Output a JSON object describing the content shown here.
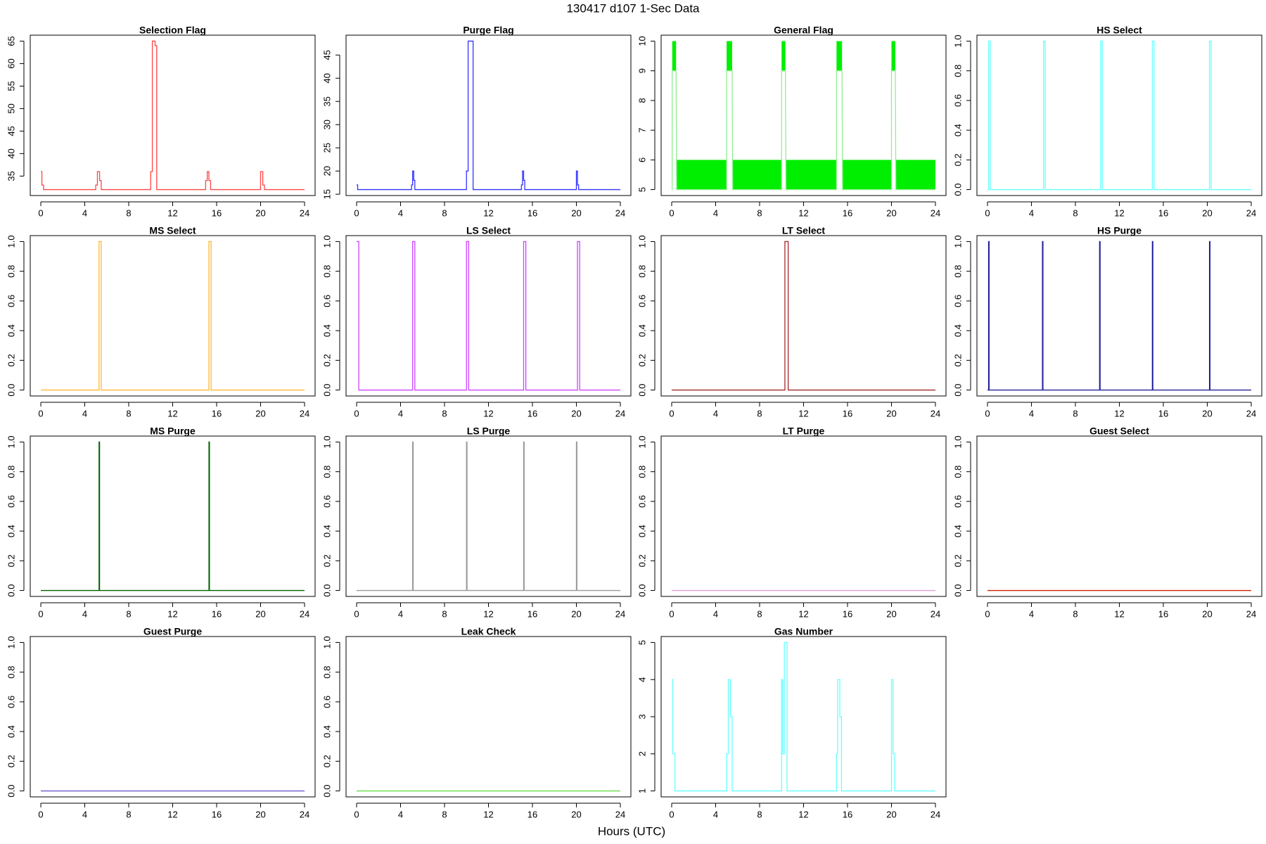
{
  "title": "130417   d107   1-Sec Data",
  "x_label": "Hours (UTC)",
  "chart_data": [
    {
      "type": "line",
      "title": "Selection Flag",
      "color": "#ff4444",
      "xlim": [
        -0.96,
        24.96
      ],
      "xticks": [
        0,
        4,
        8,
        12,
        16,
        20,
        24
      ],
      "ylim": [
        30.68,
        66.32
      ],
      "yticks": [
        35,
        40,
        45,
        50,
        55,
        60,
        65
      ],
      "x": [
        0,
        0.1,
        0.1,
        0.25,
        0.25,
        5.0,
        5.0,
        5.15,
        5.15,
        5.35,
        5.35,
        5.5,
        5.5,
        10.0,
        10.0,
        10.15,
        10.15,
        10.4,
        10.4,
        10.55,
        10.55,
        15.0,
        15.0,
        15.15,
        15.15,
        15.3,
        15.3,
        15.45,
        15.45,
        20.0,
        20.0,
        20.2,
        20.2,
        20.35,
        20.35,
        24
      ],
      "values": [
        36,
        36,
        33,
        33,
        32,
        32,
        33,
        33,
        36,
        36,
        34,
        34,
        32,
        32,
        36,
        36,
        65,
        65,
        64,
        64,
        32,
        32,
        34,
        34,
        36,
        36,
        34,
        34,
        32,
        32,
        36,
        36,
        33,
        33,
        32,
        32
      ]
    },
    {
      "type": "line",
      "title": "Purge Flag",
      "color": "#3333ff",
      "xlim": [
        -0.96,
        24.96
      ],
      "xticks": [
        0,
        4,
        8,
        12,
        16,
        20,
        24
      ],
      "ylim": [
        14.72,
        49.28
      ],
      "yticks": [
        15,
        20,
        25,
        30,
        35,
        40,
        45
      ],
      "x": [
        0,
        0.1,
        0.1,
        5.0,
        5.0,
        5.1,
        5.1,
        5.2,
        5.2,
        5.3,
        5.3,
        10.0,
        10.0,
        10.15,
        10.15,
        10.6,
        10.6,
        15.0,
        15.0,
        15.1,
        15.1,
        15.2,
        15.2,
        15.3,
        15.3,
        20.0,
        20.0,
        20.1,
        20.1,
        20.2,
        20.2,
        24
      ],
      "values": [
        17,
        17,
        16,
        16,
        17,
        17,
        20,
        20,
        18,
        18,
        16,
        16,
        20,
        20,
        48,
        48,
        16,
        16,
        17,
        17,
        20,
        20,
        18,
        18,
        16,
        16,
        20,
        20,
        17,
        17,
        16,
        16
      ]
    },
    {
      "type": "line",
      "title": "General Flag",
      "color": "#90ee90",
      "fill_color": "#00ee00",
      "xlim": [
        -0.96,
        24.96
      ],
      "xticks": [
        0,
        4,
        8,
        12,
        16,
        20,
        24
      ],
      "ylim": [
        4.8,
        10.2
      ],
      "yticks": [
        5,
        6,
        7,
        8,
        9,
        10
      ],
      "x": [
        0,
        0.05,
        0.05,
        0.4,
        0.45,
        5.0,
        5.0,
        5.5,
        5.55,
        10.0,
        10.0,
        10.35,
        10.4,
        15.0,
        15.0,
        15.5,
        15.55,
        20.0,
        20.0,
        20.35,
        20.4,
        24
      ],
      "values": [
        5,
        5,
        9,
        9,
        5,
        5,
        9,
        9,
        5,
        5,
        9,
        9,
        5,
        5,
        9,
        9,
        5,
        5,
        9,
        9,
        5,
        5
      ],
      "fill_ranges": [
        {
          "x": [
            0.05,
            0.4
          ],
          "y": [
            9,
            10
          ]
        },
        {
          "x": [
            0.45,
            5.0
          ],
          "y": [
            5,
            6
          ]
        },
        {
          "x": [
            5.0,
            5.5
          ],
          "y": [
            9,
            10
          ]
        },
        {
          "x": [
            5.55,
            10.0
          ],
          "y": [
            5,
            6
          ]
        },
        {
          "x": [
            10.0,
            10.35
          ],
          "y": [
            9,
            10
          ]
        },
        {
          "x": [
            10.4,
            15.0
          ],
          "y": [
            5,
            6
          ]
        },
        {
          "x": [
            15.0,
            15.5
          ],
          "y": [
            9,
            10
          ]
        },
        {
          "x": [
            15.55,
            20.0
          ],
          "y": [
            5,
            6
          ]
        },
        {
          "x": [
            20.0,
            20.35
          ],
          "y": [
            9,
            10
          ]
        },
        {
          "x": [
            20.4,
            24
          ],
          "y": [
            5,
            6
          ]
        }
      ]
    },
    {
      "type": "line",
      "title": "HS Select",
      "color": "#66ffff",
      "xlim": [
        -0.96,
        24.96
      ],
      "xticks": [
        0,
        4,
        8,
        12,
        16,
        20,
        24
      ],
      "ylim": [
        -0.04,
        1.04
      ],
      "yticks": [
        {
          "value": 0,
          "label": "0.0"
        },
        0.2,
        0.4,
        0.6,
        0.8,
        {
          "value": 1,
          "label": "1.0"
        }
      ],
      "x": [
        0,
        0.1,
        0.1,
        0.25,
        0.25,
        5.1,
        5.1,
        5.25,
        5.25,
        10.3,
        10.3,
        10.45,
        10.45,
        15.0,
        15.0,
        15.15,
        15.15,
        20.2,
        20.2,
        20.35,
        20.35,
        24
      ],
      "values": [
        0,
        0,
        1,
        1,
        0,
        0,
        1,
        1,
        0,
        0,
        1,
        1,
        0,
        0,
        1,
        1,
        0,
        0,
        1,
        1,
        0,
        0
      ]
    },
    {
      "type": "line",
      "title": "MS Select",
      "color": "#ffb833",
      "xlim": [
        -0.96,
        24.96
      ],
      "xticks": [
        0,
        4,
        8,
        12,
        16,
        20,
        24
      ],
      "ylim": [
        -0.04,
        1.04
      ],
      "yticks": [
        {
          "value": 0,
          "label": "0.0"
        },
        0.2,
        0.4,
        0.6,
        0.8,
        {
          "value": 1,
          "label": "1.0"
        }
      ],
      "x": [
        0,
        5.3,
        5.3,
        5.5,
        5.5,
        15.3,
        15.3,
        15.5,
        15.5,
        24
      ],
      "values": [
        0,
        0,
        1,
        1,
        0,
        0,
        1,
        1,
        0,
        0
      ]
    },
    {
      "type": "line",
      "title": "LS Select",
      "color": "#cc44ff",
      "xlim": [
        -0.96,
        24.96
      ],
      "xticks": [
        0,
        4,
        8,
        12,
        16,
        20,
        24
      ],
      "ylim": [
        -0.04,
        1.04
      ],
      "yticks": [
        {
          "value": 0,
          "label": "0.0"
        },
        0.2,
        0.4,
        0.6,
        0.8,
        {
          "value": 1,
          "label": "1.0"
        }
      ],
      "x": [
        0,
        0.2,
        0.2,
        5.1,
        5.1,
        5.3,
        5.3,
        10.0,
        10.0,
        10.2,
        10.2,
        15.2,
        15.2,
        15.4,
        15.4,
        20.1,
        20.1,
        20.3,
        20.3,
        24
      ],
      "values": [
        1,
        1,
        0,
        0,
        1,
        1,
        0,
        0,
        1,
        1,
        0,
        0,
        1,
        1,
        0,
        0,
        1,
        1,
        0,
        0
      ]
    },
    {
      "type": "line",
      "title": "LT Select",
      "color": "#a52a2a",
      "xlim": [
        -0.96,
        24.96
      ],
      "xticks": [
        0,
        4,
        8,
        12,
        16,
        20,
        24
      ],
      "ylim": [
        -0.04,
        1.04
      ],
      "yticks": [
        {
          "value": 0,
          "label": "0.0"
        },
        0.2,
        0.4,
        0.6,
        0.8,
        {
          "value": 1,
          "label": "1.0"
        }
      ],
      "x": [
        0,
        10.3,
        10.3,
        10.6,
        10.6,
        24
      ],
      "values": [
        0,
        0,
        1,
        1,
        0,
        0
      ]
    },
    {
      "type": "line",
      "title": "HS Purge",
      "color": "#22229a",
      "xlim": [
        -0.96,
        24.96
      ],
      "xticks": [
        0,
        4,
        8,
        12,
        16,
        20,
        24
      ],
      "ylim": [
        -0.04,
        1.04
      ],
      "yticks": [
        {
          "value": 0,
          "label": "0.0"
        },
        0.2,
        0.4,
        0.6,
        0.8,
        {
          "value": 1,
          "label": "1.0"
        }
      ],
      "x": [
        0,
        0.1,
        0.1,
        0.15,
        0.15,
        5.0,
        5.0,
        5.05,
        5.05,
        10.2,
        10.2,
        10.25,
        10.25,
        15.0,
        15.0,
        15.05,
        15.05,
        20.2,
        20.2,
        20.25,
        20.25,
        24
      ],
      "values": [
        0,
        0,
        1,
        1,
        0,
        0,
        1,
        1,
        0,
        0,
        1,
        1,
        0,
        0,
        1,
        1,
        0,
        0,
        1,
        1,
        0,
        0
      ]
    },
    {
      "type": "line",
      "title": "MS Purge",
      "color": "#006400",
      "xlim": [
        -0.96,
        24.96
      ],
      "xticks": [
        0,
        4,
        8,
        12,
        16,
        20,
        24
      ],
      "ylim": [
        -0.04,
        1.04
      ],
      "yticks": [
        {
          "value": 0,
          "label": "0.0"
        },
        0.2,
        0.4,
        0.6,
        0.8,
        {
          "value": 1,
          "label": "1.0"
        }
      ],
      "x": [
        0,
        5.3,
        5.3,
        5.35,
        5.35,
        15.3,
        15.3,
        15.35,
        15.35,
        24
      ],
      "values": [
        0,
        0,
        1,
        1,
        0,
        0,
        1,
        1,
        0,
        0
      ]
    },
    {
      "type": "line",
      "title": "LS Purge",
      "color": "#999999",
      "xlim": [
        -0.96,
        24.96
      ],
      "xticks": [
        0,
        4,
        8,
        12,
        16,
        20,
        24
      ],
      "ylim": [
        -0.04,
        1.04
      ],
      "yticks": [
        {
          "value": 0,
          "label": "0.0"
        },
        0.2,
        0.4,
        0.6,
        0.8,
        {
          "value": 1,
          "label": "1.0"
        }
      ],
      "x": [
        0,
        5.1,
        5.1,
        5.15,
        5.15,
        10.0,
        10.0,
        10.05,
        10.05,
        15.2,
        15.2,
        15.25,
        15.25,
        20.0,
        20.0,
        20.05,
        20.05,
        24
      ],
      "values": [
        0,
        0,
        1,
        1,
        0,
        0,
        1,
        1,
        0,
        0,
        1,
        1,
        0,
        0,
        1,
        1,
        0,
        0
      ]
    },
    {
      "type": "line",
      "title": "LT Purge",
      "color": "#dda0dd",
      "xlim": [
        -0.96,
        24.96
      ],
      "xticks": [
        0,
        4,
        8,
        12,
        16,
        20,
        24
      ],
      "ylim": [
        -0.04,
        1.04
      ],
      "yticks": [
        {
          "value": 0,
          "label": "0.0"
        },
        0.2,
        0.4,
        0.6,
        0.8,
        {
          "value": 1,
          "label": "1.0"
        }
      ],
      "x": [
        0,
        24
      ],
      "values": [
        0,
        0
      ]
    },
    {
      "type": "line",
      "title": "Guest Select",
      "color": "#cc2200",
      "xlim": [
        -0.96,
        24.96
      ],
      "xticks": [
        0,
        4,
        8,
        12,
        16,
        20,
        24
      ],
      "ylim": [
        -0.04,
        1.04
      ],
      "yticks": [
        {
          "value": 0,
          "label": "0.0"
        },
        0.2,
        0.4,
        0.6,
        0.8,
        {
          "value": 1,
          "label": "1.0"
        }
      ],
      "x": [
        0,
        24
      ],
      "values": [
        0,
        0
      ]
    },
    {
      "type": "line",
      "title": "Guest Purge",
      "color": "#6a5acd",
      "xlim": [
        -0.96,
        24.96
      ],
      "xticks": [
        0,
        4,
        8,
        12,
        16,
        20,
        24
      ],
      "ylim": [
        -0.04,
        1.04
      ],
      "yticks": [
        {
          "value": 0,
          "label": "0.0"
        },
        0.2,
        0.4,
        0.6,
        0.8,
        {
          "value": 1,
          "label": "1.0"
        }
      ],
      "x": [
        0,
        24
      ],
      "values": [
        0,
        0
      ]
    },
    {
      "type": "line",
      "title": "Leak Check",
      "color": "#66dd44",
      "xlim": [
        -0.96,
        24.96
      ],
      "xticks": [
        0,
        4,
        8,
        12,
        16,
        20,
        24
      ],
      "ylim": [
        -0.04,
        1.04
      ],
      "yticks": [
        {
          "value": 0,
          "label": "0.0"
        },
        0.2,
        0.4,
        0.6,
        0.8,
        {
          "value": 1,
          "label": "1.0"
        }
      ],
      "x": [
        0,
        24
      ],
      "values": [
        0,
        0
      ]
    },
    {
      "type": "line",
      "title": "Gas Number",
      "color": "#66ffff",
      "xlim": [
        -0.96,
        24.96
      ],
      "xticks": [
        0,
        4,
        8,
        12,
        16,
        20,
        24
      ],
      "ylim": [
        0.84,
        5.16
      ],
      "yticks": [
        1,
        2,
        3,
        4,
        5
      ],
      "x": [
        0,
        0.1,
        0.1,
        0.3,
        0.3,
        5.0,
        5.0,
        5.15,
        5.15,
        5.35,
        5.35,
        5.5,
        5.5,
        10.0,
        10.0,
        10.1,
        10.1,
        10.25,
        10.25,
        10.5,
        10.5,
        15.0,
        15.0,
        15.1,
        15.1,
        15.3,
        15.3,
        15.45,
        15.45,
        20.0,
        20.0,
        20.15,
        20.15,
        20.3,
        20.3,
        24
      ],
      "values": [
        4,
        4,
        2,
        2,
        1,
        1,
        2,
        2,
        4,
        4,
        3,
        3,
        1,
        1,
        4,
        4,
        2,
        2,
        5,
        5,
        1,
        1,
        2,
        2,
        4,
        4,
        3,
        3,
        1,
        1,
        4,
        4,
        2,
        2,
        1,
        1
      ]
    }
  ]
}
